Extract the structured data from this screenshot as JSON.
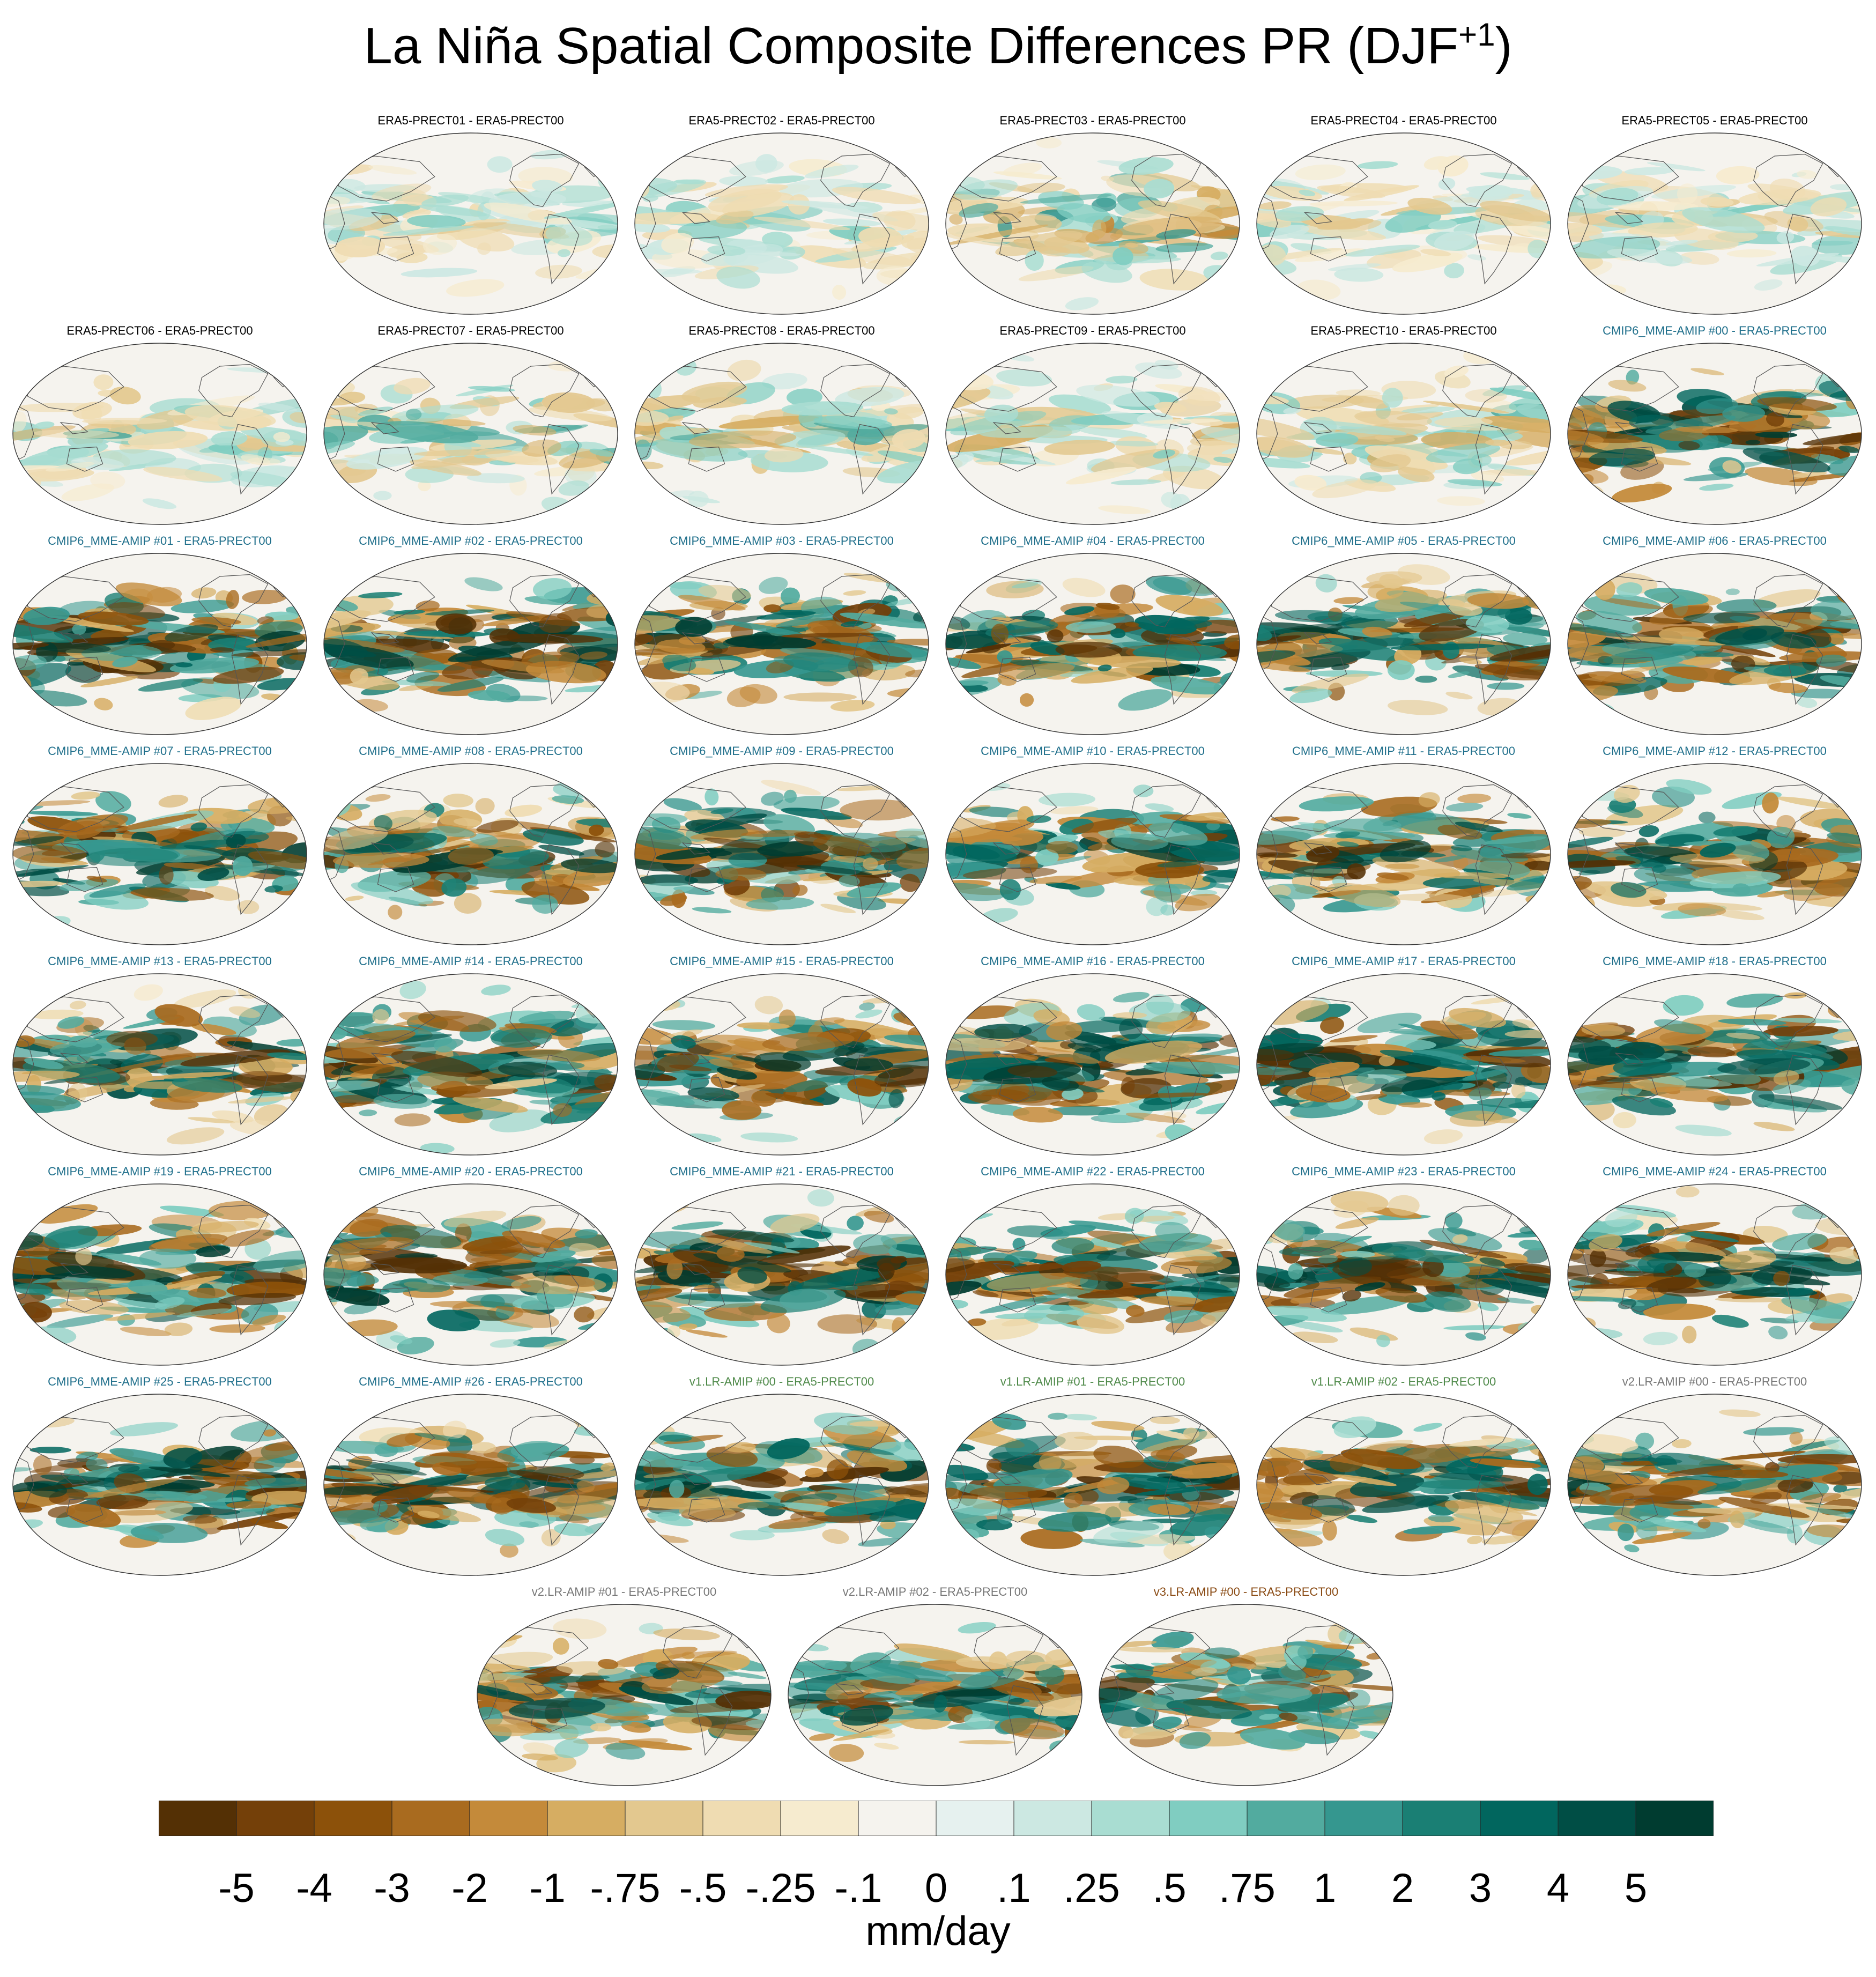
{
  "title": {
    "main": "La Niña Spatial Composite Differences PR (DJF",
    "sup": "+1",
    "close": ")"
  },
  "colors": {
    "era5": "#000000",
    "cmip6": "#1f6f8b",
    "v1": "#4f8a4a",
    "v2": "#777777",
    "v3": "#8a4b14"
  },
  "chart_data": {
    "type": "heatmap",
    "projection": "global map panels",
    "panels": [
      {
        "label": "ERA5-PRECT01 - ERA5-PRECT00",
        "group": "era5",
        "intensity": 0.25
      },
      {
        "label": "ERA5-PRECT02 - ERA5-PRECT00",
        "group": "era5",
        "intensity": 0.25
      },
      {
        "label": "ERA5-PRECT03 - ERA5-PRECT00",
        "group": "era5",
        "intensity": 0.45
      },
      {
        "label": "ERA5-PRECT04 - ERA5-PRECT00",
        "group": "era5",
        "intensity": 0.25
      },
      {
        "label": "ERA5-PRECT05 - ERA5-PRECT00",
        "group": "era5",
        "intensity": 0.25
      },
      {
        "label": "ERA5-PRECT06 - ERA5-PRECT00",
        "group": "era5",
        "intensity": 0.3
      },
      {
        "label": "ERA5-PRECT07 - ERA5-PRECT00",
        "group": "era5",
        "intensity": 0.35
      },
      {
        "label": "ERA5-PRECT08 - ERA5-PRECT00",
        "group": "era5",
        "intensity": 0.35
      },
      {
        "label": "ERA5-PRECT09 - ERA5-PRECT00",
        "group": "era5",
        "intensity": 0.3
      },
      {
        "label": "ERA5-PRECT10 - ERA5-PRECT00",
        "group": "era5",
        "intensity": 0.35
      },
      {
        "label": "CMIP6_MME-AMIP  #00 - ERA5-PRECT00",
        "group": "cmip6",
        "intensity": 0.85
      },
      {
        "label": "CMIP6_MME-AMIP  #01 - ERA5-PRECT00",
        "group": "cmip6",
        "intensity": 0.85
      },
      {
        "label": "CMIP6_MME-AMIP  #02 - ERA5-PRECT00",
        "group": "cmip6",
        "intensity": 0.85
      },
      {
        "label": "CMIP6_MME-AMIP  #03 - ERA5-PRECT00",
        "group": "cmip6",
        "intensity": 0.8
      },
      {
        "label": "CMIP6_MME-AMIP  #04 - ERA5-PRECT00",
        "group": "cmip6",
        "intensity": 0.85
      },
      {
        "label": "CMIP6_MME-AMIP  #05 - ERA5-PRECT00",
        "group": "cmip6",
        "intensity": 0.85
      },
      {
        "label": "CMIP6_MME-AMIP  #06 - ERA5-PRECT00",
        "group": "cmip6",
        "intensity": 0.85
      },
      {
        "label": "CMIP6_MME-AMIP  #07 - ERA5-PRECT00",
        "group": "cmip6",
        "intensity": 0.8
      },
      {
        "label": "CMIP6_MME-AMIP  #08 - ERA5-PRECT00",
        "group": "cmip6",
        "intensity": 0.8
      },
      {
        "label": "CMIP6_MME-AMIP  #09 - ERA5-PRECT00",
        "group": "cmip6",
        "intensity": 0.85
      },
      {
        "label": "CMIP6_MME-AMIP  #10 - ERA5-PRECT00",
        "group": "cmip6",
        "intensity": 0.75
      },
      {
        "label": "CMIP6_MME-AMIP  #11 - ERA5-PRECT00",
        "group": "cmip6",
        "intensity": 0.8
      },
      {
        "label": "CMIP6_MME-AMIP  #12 - ERA5-PRECT00",
        "group": "cmip6",
        "intensity": 0.8
      },
      {
        "label": "CMIP6_MME-AMIP  #13 - ERA5-PRECT00",
        "group": "cmip6",
        "intensity": 0.8
      },
      {
        "label": "CMIP6_MME-AMIP  #14 - ERA5-PRECT00",
        "group": "cmip6",
        "intensity": 0.85
      },
      {
        "label": "CMIP6_MME-AMIP  #15 - ERA5-PRECT00",
        "group": "cmip6",
        "intensity": 0.85
      },
      {
        "label": "CMIP6_MME-AMIP  #16 - ERA5-PRECT00",
        "group": "cmip6",
        "intensity": 0.85
      },
      {
        "label": "CMIP6_MME-AMIP  #17 - ERA5-PRECT00",
        "group": "cmip6",
        "intensity": 0.85
      },
      {
        "label": "CMIP6_MME-AMIP  #18 - ERA5-PRECT00",
        "group": "cmip6",
        "intensity": 0.85
      },
      {
        "label": "CMIP6_MME-AMIP  #19 - ERA5-PRECT00",
        "group": "cmip6",
        "intensity": 0.9
      },
      {
        "label": "CMIP6_MME-AMIP  #20 - ERA5-PRECT00",
        "group": "cmip6",
        "intensity": 0.9
      },
      {
        "label": "CMIP6_MME-AMIP  #21 - ERA5-PRECT00",
        "group": "cmip6",
        "intensity": 0.9
      },
      {
        "label": "CMIP6_MME-AMIP  #22 - ERA5-PRECT00",
        "group": "cmip6",
        "intensity": 0.85
      },
      {
        "label": "CMIP6_MME-AMIP  #23 - ERA5-PRECT00",
        "group": "cmip6",
        "intensity": 0.85
      },
      {
        "label": "CMIP6_MME-AMIP  #24 - ERA5-PRECT00",
        "group": "cmip6",
        "intensity": 0.85
      },
      {
        "label": "CMIP6_MME-AMIP  #25 - ERA5-PRECT00",
        "group": "cmip6",
        "intensity": 0.9
      },
      {
        "label": "CMIP6_MME-AMIP  #26 - ERA5-PRECT00",
        "group": "cmip6",
        "intensity": 0.85
      },
      {
        "label": "v1.LR-AMIP  #00 - ERA5-PRECT00",
        "group": "v1",
        "intensity": 0.8
      },
      {
        "label": "v1.LR-AMIP  #01 - ERA5-PRECT00",
        "group": "v1",
        "intensity": 0.8
      },
      {
        "label": "v1.LR-AMIP  #02 - ERA5-PRECT00",
        "group": "v1",
        "intensity": 0.8
      },
      {
        "label": "v2.LR-AMIP  #00 - ERA5-PRECT00",
        "group": "v2",
        "intensity": 0.75
      },
      {
        "label": "v2.LR-AMIP  #01 - ERA5-PRECT00",
        "group": "v2",
        "intensity": 0.75
      },
      {
        "label": "v2.LR-AMIP  #02 - ERA5-PRECT00",
        "group": "v2",
        "intensity": 0.75
      },
      {
        "label": "v3.LR-AMIP  #00 - ERA5-PRECT00",
        "group": "v3",
        "intensity": 0.75
      }
    ],
    "colorbar": {
      "label": "mm/day",
      "tick_labels": [
        "-5",
        "-4",
        "-3",
        "-2",
        "-1",
        "-.75",
        "-.5",
        "-.25",
        "-.1",
        "0",
        ".1",
        ".25",
        ".5",
        ".75",
        "1",
        "2",
        "3",
        "4",
        "5"
      ],
      "colors": [
        "#543005",
        "#744009",
        "#8c510a",
        "#a96b1f",
        "#c48a3a",
        "#d6ad62",
        "#e3c88f",
        "#efdcb2",
        "#f6ebcf",
        "#f5f3ee",
        "#e6f1ef",
        "#cce8e2",
        "#a9ddd2",
        "#80cdc1",
        "#52ab9f",
        "#35978f",
        "#1a7f74",
        "#01665e",
        "#004e45",
        "#003c30"
      ]
    }
  }
}
